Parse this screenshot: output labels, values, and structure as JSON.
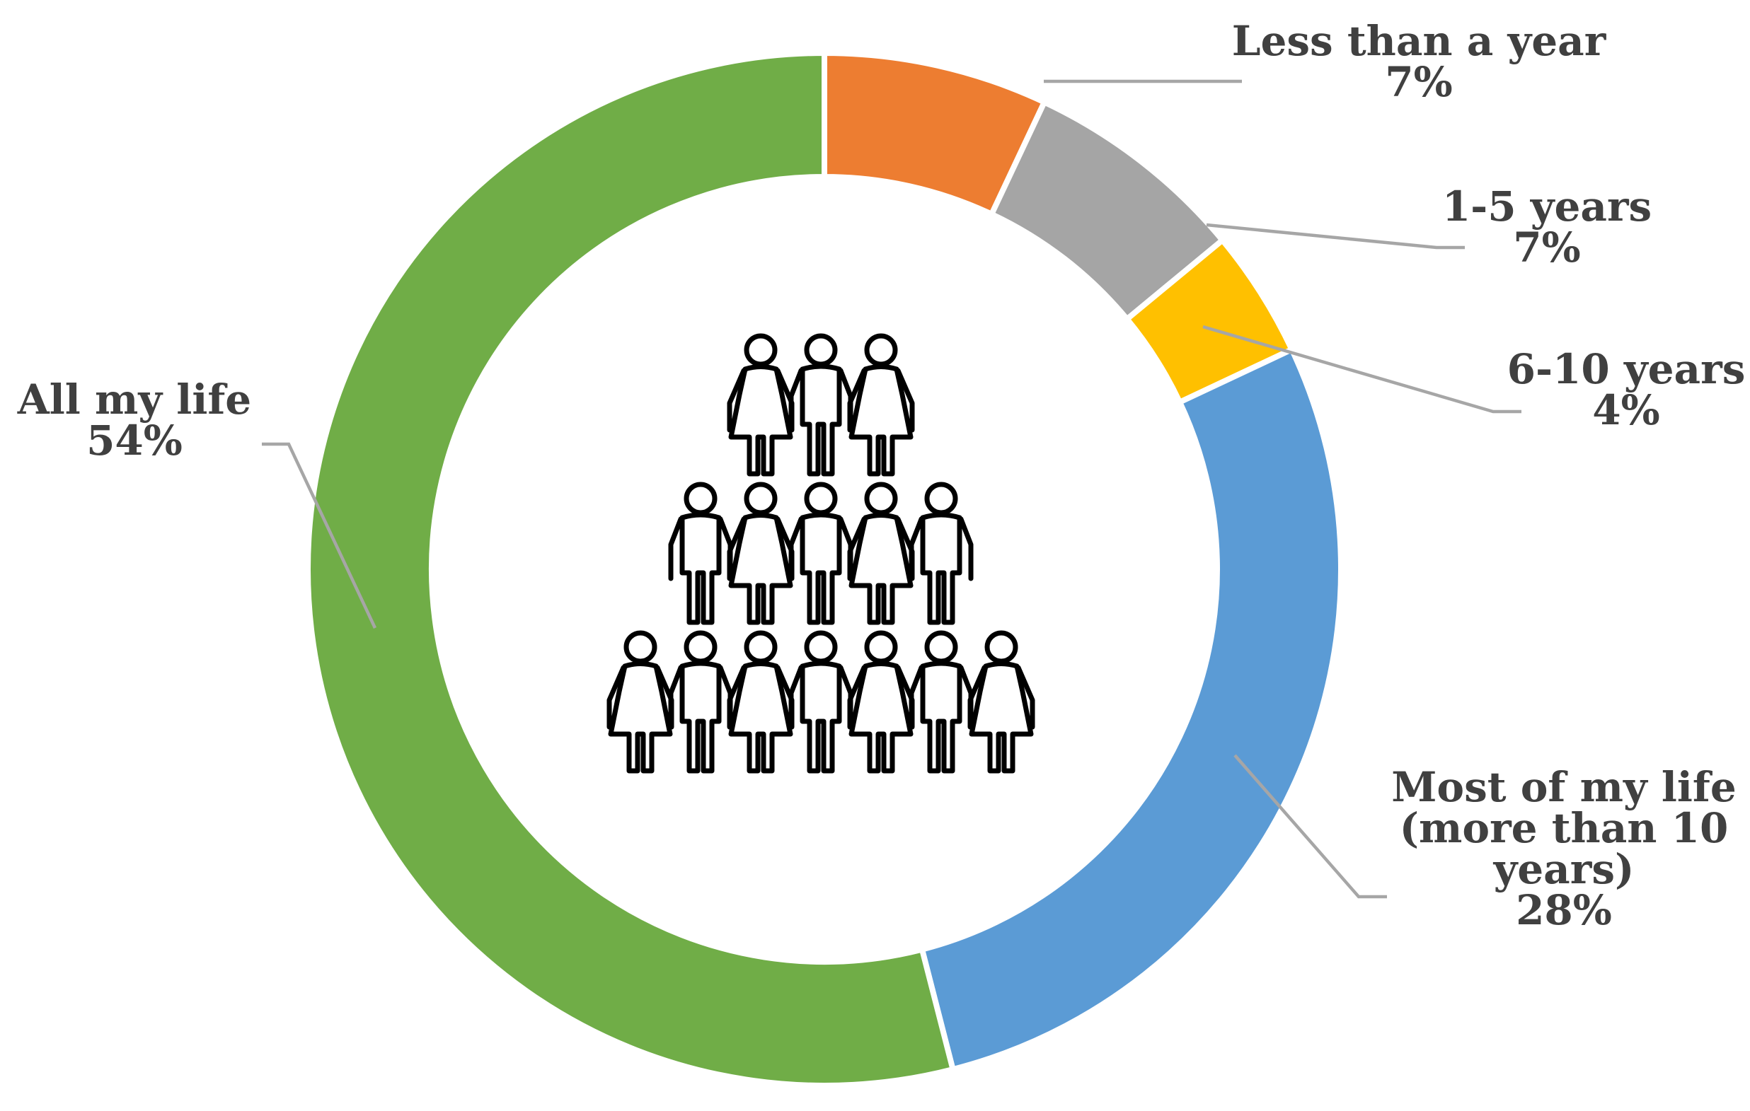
{
  "chart_data": {
    "type": "pie",
    "style": "donut",
    "title": "",
    "categories": [
      "Less than a year",
      "1-5 years",
      "6-10 years",
      "Most of my life (more than 10 years)",
      "All my life"
    ],
    "values": [
      7,
      7,
      4,
      28,
      54
    ],
    "value_labels": [
      "7%",
      "7%",
      "4%",
      "28%",
      "54%"
    ],
    "label_lines": [
      [
        "Less than a year"
      ],
      [
        "1-5 years"
      ],
      [
        "6-10 years"
      ],
      [
        "Most of my life",
        "(more than 10",
        "years)"
      ],
      [
        "All my life"
      ]
    ],
    "colors": [
      "#ED7D31",
      "#A5A5A5",
      "#FFC000",
      "#5B9BD5",
      "#70AD47"
    ],
    "legend": "none",
    "center_icon": "people-group-icon",
    "leader_line_color": "#A6A6A6",
    "label_color": "#404040"
  }
}
